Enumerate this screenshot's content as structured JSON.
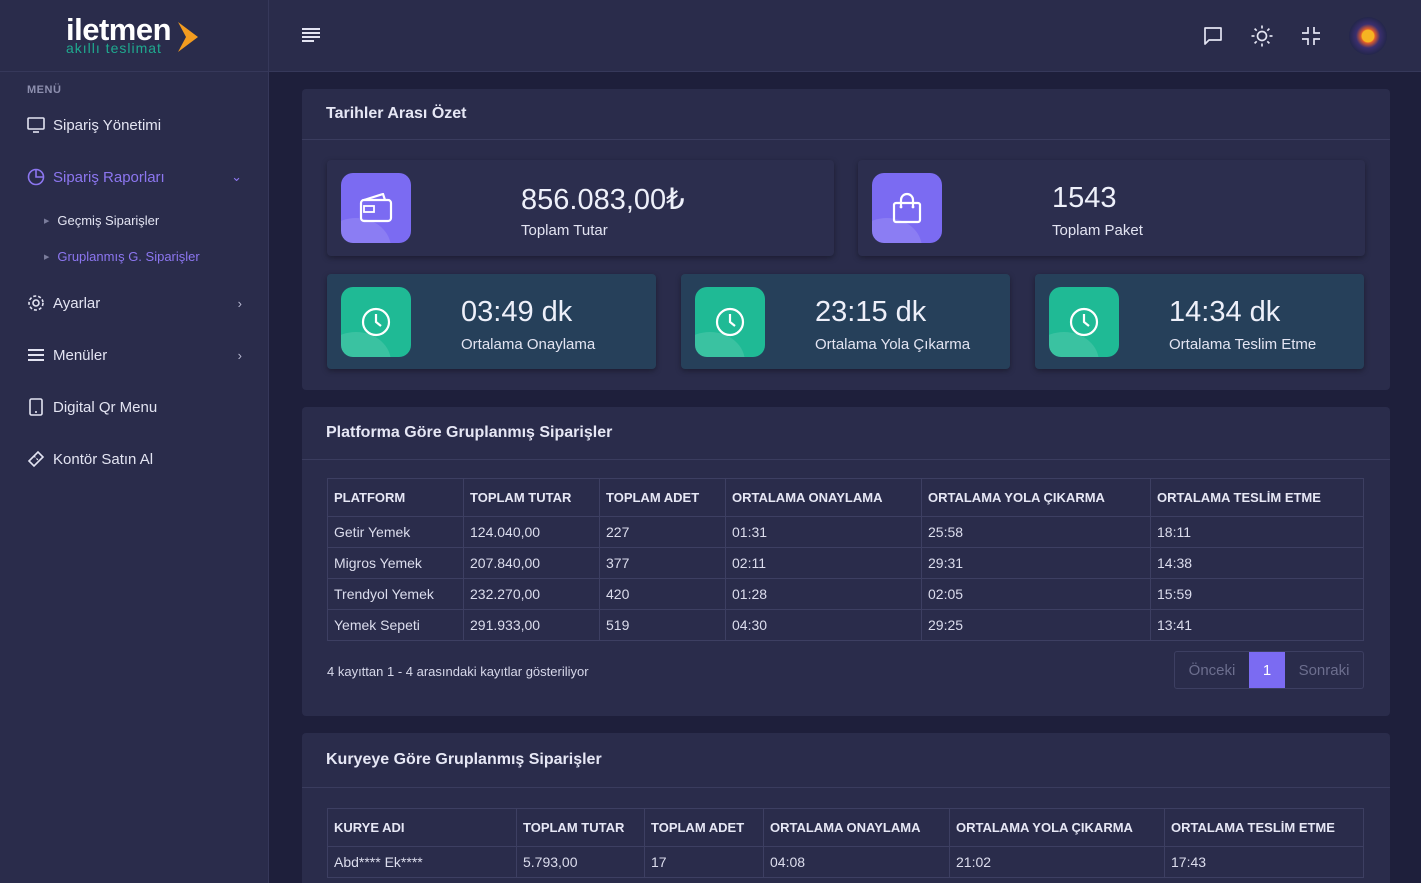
{
  "brand": {
    "name": "iletmen",
    "tagline": "akıllı teslimat"
  },
  "menu": {
    "label": "MENÜ",
    "items": [
      {
        "label": "Sipariş Yönetimi",
        "icon": "monitor-icon"
      },
      {
        "label": "Sipariş Raporları",
        "icon": "pie-chart-icon"
      },
      {
        "label": "Ayarlar",
        "icon": "gear-icon"
      },
      {
        "label": "Menüler",
        "icon": "list-icon"
      },
      {
        "label": "Digital Qr Menu",
        "icon": "tablet-icon"
      },
      {
        "label": "Kontör Satın Al",
        "icon": "ticket-icon"
      }
    ],
    "subitems": [
      {
        "label": "Geçmiş Siparişler"
      },
      {
        "label": "Gruplanmış G. Siparişler"
      }
    ]
  },
  "summary": {
    "title": "Tarihler Arası Özet",
    "total_amount": {
      "value": "856.083,00₺",
      "label": "Toplam Tutar"
    },
    "total_packages": {
      "value": "1543",
      "label": "Toplam Paket"
    },
    "avg_approve": {
      "value": "03:49 dk",
      "label": "Ortalama Onaylama"
    },
    "avg_departure": {
      "value": "23:15 dk",
      "label": "Ortalama Yola Çıkarma"
    },
    "avg_delivery": {
      "value": "14:34 dk",
      "label": "Ortalama Teslim Etme"
    }
  },
  "platform_table": {
    "title": "Platforma Göre Gruplanmış Siparişler",
    "headers": [
      "PLATFORM",
      "TOPLAM TUTAR",
      "TOPLAM ADET",
      "ORTALAMA ONAYLAMA",
      "ORTALAMA YOLA ÇIKARMA",
      "ORTALAMA TESLİM ETME"
    ],
    "rows": [
      [
        "Getir Yemek",
        "124.040,00",
        "227",
        "01:31",
        "25:58",
        "18:11"
      ],
      [
        "Migros Yemek",
        "207.840,00",
        "377",
        "02:11",
        "29:31",
        "14:38"
      ],
      [
        "Trendyol Yemek",
        "232.270,00",
        "420",
        "01:28",
        "02:05",
        "15:59"
      ],
      [
        "Yemek Sepeti",
        "291.933,00",
        "519",
        "04:30",
        "29:25",
        "13:41"
      ]
    ],
    "info": "4 kayıttan 1 - 4 arasındaki kayıtlar gösteriliyor",
    "pager": {
      "prev": "Önceki",
      "current": "1",
      "next": "Sonraki"
    }
  },
  "courier_table": {
    "title": "Kuryeye Göre Gruplanmış Siparişler",
    "headers": [
      "KURYE ADI",
      "TOPLAM TUTAR",
      "TOPLAM ADET",
      "ORTALAMA ONAYLAMA",
      "ORTALAMA YOLA ÇIKARMA",
      "ORTALAMA TESLİM ETME"
    ],
    "rows": [
      [
        "Abd**** Ek****",
        "5.793,00",
        "17",
        "04:08",
        "21:02",
        "17:43"
      ]
    ]
  },
  "colors": {
    "accent": "#7b6bf2",
    "green": "#1fba95",
    "background": "#1e1f3b",
    "panel": "#2a2c4b"
  }
}
